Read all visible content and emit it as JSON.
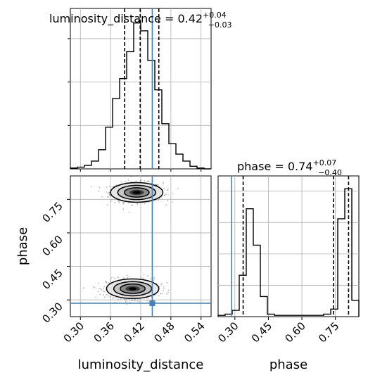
{
  "chart_data": {
    "type": "corner",
    "parameters": [
      "luminosity_distance",
      "phase"
    ],
    "truth": {
      "luminosity_distance": 0.443,
      "phase": 0.285
    },
    "truth_color": "#4682b4",
    "hist_color": "#000000",
    "grid": true,
    "luminosity_distance": {
      "title": {
        "main": "luminosity_distance = 0.42",
        "sup": "+0.04",
        "sub": "−0.03"
      },
      "xlabel": "luminosity_distance",
      "range": [
        0.28,
        0.56
      ],
      "ticks": [
        0.3,
        0.36,
        0.42,
        0.48,
        0.54
      ],
      "tick_labels": [
        "0.30",
        "0.36",
        "0.42",
        "0.48",
        "0.54"
      ],
      "quantiles": [
        0.388,
        0.419,
        0.456
      ],
      "hist_edges": [
        0.28,
        0.294,
        0.308,
        0.322,
        0.336,
        0.35,
        0.364,
        0.378,
        0.392,
        0.406,
        0.42,
        0.434,
        0.448,
        0.462,
        0.476,
        0.49,
        0.504,
        0.518,
        0.532,
        0.546,
        0.56
      ],
      "hist_counts": [
        1,
        2,
        4,
        9,
        22,
        48,
        81,
        104,
        135,
        168,
        159,
        125,
        91,
        52,
        29,
        17,
        9,
        3,
        1,
        0
      ]
    },
    "phase": {
      "title": {
        "main": "phase = 0.74",
        "sup": "+0.07",
        "sub": "−0.40"
      },
      "xlabel": "phase",
      "ylabel": "phase",
      "range": [
        0.225,
        0.855
      ],
      "ticks": [
        0.3,
        0.45,
        0.6,
        0.75
      ],
      "tick_labels": [
        "0.30",
        "0.45",
        "0.60",
        "0.75"
      ],
      "quantiles": [
        0.337,
        0.741,
        0.809
      ],
      "hist_edges": [
        0.225,
        0.2565,
        0.288,
        0.3195,
        0.351,
        0.3825,
        0.414,
        0.4455,
        0.477,
        0.5085,
        0.54,
        0.5715,
        0.603,
        0.6345,
        0.666,
        0.6975,
        0.729,
        0.7605,
        0.792,
        0.8235,
        0.855
      ],
      "hist_counts": [
        1,
        2,
        5,
        33,
        86,
        57,
        16,
        2,
        1,
        1,
        1,
        1,
        1,
        1,
        1,
        2,
        6,
        78,
        102,
        13
      ]
    },
    "density_modes": [
      {
        "luminosity_distance": 0.412,
        "phase": 0.781
      },
      {
        "luminosity_distance": 0.404,
        "phase": 0.35
      }
    ]
  }
}
